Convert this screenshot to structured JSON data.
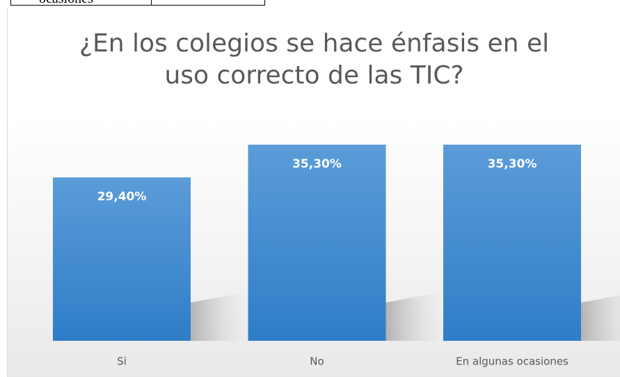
{
  "table": {
    "rows": [
      [
        "ocasiones"
      ]
    ]
  },
  "chart_data": {
    "type": "bar",
    "title": "¿En los colegios se hace énfasis en el uso correcto de las TIC?",
    "categories": [
      "Si",
      "No",
      "En algunas ocasiones"
    ],
    "values": [
      29.4,
      35.3,
      35.3
    ],
    "value_labels": [
      "29,40%",
      "35,30%",
      "35,30%"
    ],
    "color": "#4a8fd6"
  }
}
